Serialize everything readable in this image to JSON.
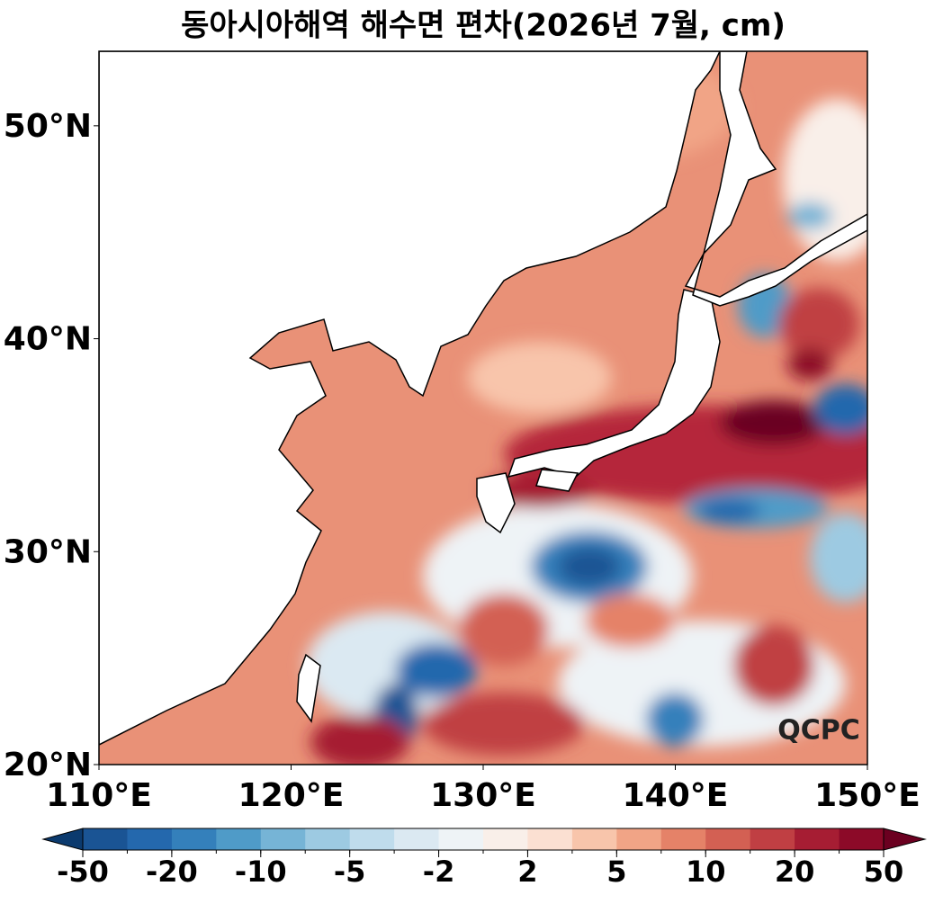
{
  "chart_data": {
    "type": "contour_map",
    "title": "동아시아해역 해수면 편차(2026년 7월, cm)",
    "xlim": [
      110,
      150
    ],
    "ylim": [
      20,
      53.5
    ],
    "xticks": [
      {
        "value": 110,
        "label": "110°E"
      },
      {
        "value": 120,
        "label": "120°E"
      },
      {
        "value": 130,
        "label": "130°E"
      },
      {
        "value": 140,
        "label": "140°E"
      },
      {
        "value": 150,
        "label": "150°E"
      }
    ],
    "yticks": [
      {
        "value": 20,
        "label": "20°N"
      },
      {
        "value": 30,
        "label": "30°N"
      },
      {
        "value": 40,
        "label": "40°N"
      },
      {
        "value": 50,
        "label": "50°N"
      }
    ],
    "colorbar": {
      "levels": [
        -50,
        -20,
        -10,
        -5,
        -2,
        2,
        5,
        10,
        20,
        50
      ],
      "colors": [
        "#1a5494",
        "#2468ad",
        "#3480bb",
        "#4f9bc8",
        "#76b4d6",
        "#9dcae2",
        "#bfdcec",
        "#dbe9f2",
        "#eef3f6",
        "#f9efe9",
        "#fbe0d2",
        "#f8c5ab",
        "#f1a486",
        "#e58268",
        "#d36053",
        "#c03f43",
        "#a61d33",
        "#8c0a28"
      ],
      "extend_colors": [
        "#0b3a6e",
        "#6b0020"
      ]
    },
    "watermark": "QCPC"
  }
}
